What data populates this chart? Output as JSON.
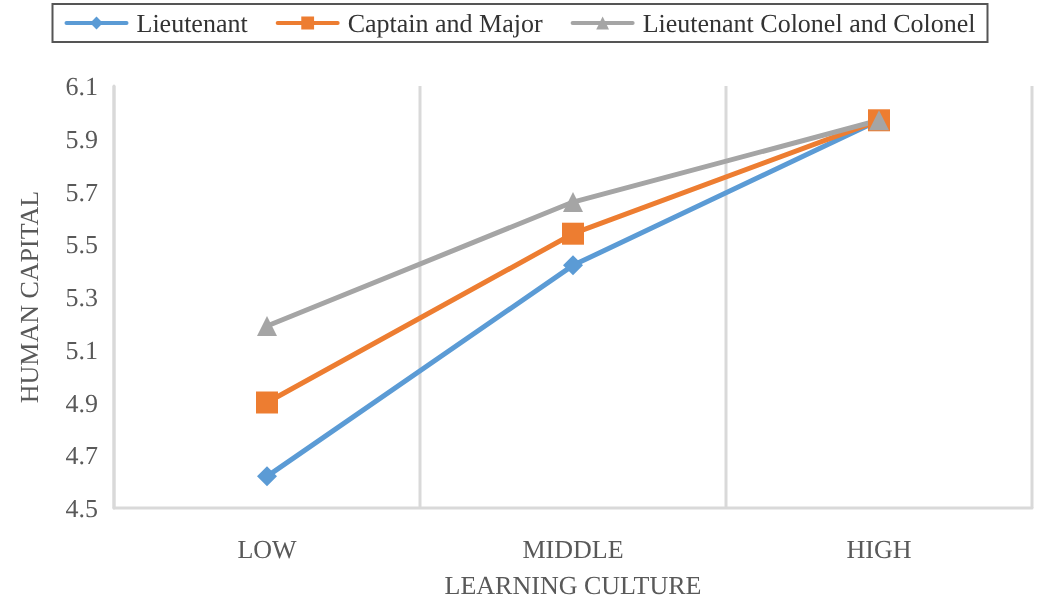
{
  "chart_data": {
    "type": "line",
    "xlabel": "LEARNING CULTURE",
    "ylabel": "HUMAN CAPITAL",
    "categories": [
      "LOW",
      "MIDDLE",
      "HIGH"
    ],
    "series": [
      {
        "name": "Lieutenant",
        "color": "#5b9bd5",
        "marker": "diamond",
        "values": [
          4.62,
          5.42,
          5.97
        ]
      },
      {
        "name": "Captain and Major",
        "color": "#ed7d31",
        "marker": "square",
        "values": [
          4.9,
          5.54,
          5.97
        ]
      },
      {
        "name": "Lieutenant Colonel and Colonel",
        "color": "#a5a5a5",
        "marker": "triangle",
        "values": [
          5.19,
          5.66,
          5.97
        ]
      }
    ],
    "ylim": [
      4.5,
      6.1
    ],
    "yticks": [
      4.5,
      4.7,
      4.9,
      5.1,
      5.3,
      5.5,
      5.7,
      5.9,
      6.1
    ],
    "grid": "x",
    "legend": "top",
    "line_style": "solid"
  }
}
